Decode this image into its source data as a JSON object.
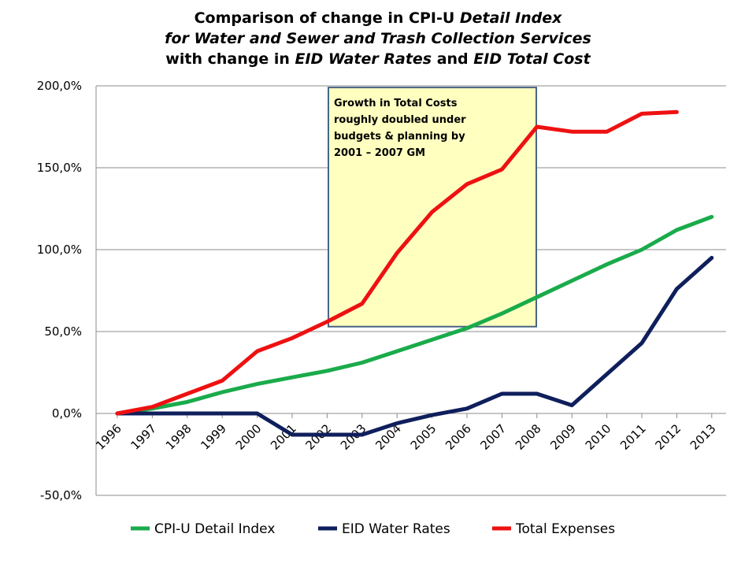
{
  "title": {
    "line1": {
      "plain": "Comparison of change in CPI-U ",
      "italic": "Detail Index"
    },
    "line2": {
      "italic": "for Water and Sewer and Trash Collection Services"
    },
    "line3": {
      "plain1": "with change in ",
      "italic1": "EID Water Rates",
      "plain2": " and ",
      "italic2": "EID Total Cost"
    }
  },
  "chart_data": {
    "type": "line",
    "x": [
      "1996",
      "1997",
      "1998",
      "1999",
      "2000",
      "2001",
      "2002",
      "2003",
      "2004",
      "2005",
      "2006",
      "2007",
      "2008",
      "2009",
      "2010",
      "2011",
      "2012",
      "2013"
    ],
    "y_ticks": [
      "200,0%",
      "150,0%",
      "100,0%",
      "50,0%",
      "0,0%",
      "-50,0%"
    ],
    "y_tick_values": [
      200,
      150,
      100,
      50,
      0,
      -50
    ],
    "ylim": [
      -50,
      200
    ],
    "grid": true,
    "legend_position": "bottom",
    "series": [
      {
        "name": "CPI-U Detail Index",
        "color": "#1aab4b",
        "values": [
          0,
          3,
          7,
          13,
          18,
          22,
          26,
          31,
          38,
          45,
          52,
          61,
          71,
          81,
          91,
          100,
          112,
          120
        ]
      },
      {
        "name": "EID Water Rates",
        "color": "#0f1f5c",
        "values": [
          0,
          0,
          0,
          0,
          0,
          -13,
          -13,
          -13,
          -6,
          -1,
          3,
          12,
          12,
          5,
          24,
          43,
          76,
          95
        ]
      },
      {
        "name": "Total Expenses",
        "color": "#ee1111",
        "values": [
          0,
          4,
          12,
          20,
          38,
          46,
          56,
          67,
          98,
          123,
          140,
          149,
          175,
          172,
          172,
          183,
          184,
          null
        ]
      }
    ],
    "annotation": {
      "lines": [
        "Growth in Total Costs",
        "roughly doubled under",
        "budgets & planning by",
        "2001 – 2007 GM"
      ],
      "fill": "#ffffc0",
      "border": "#4a6584"
    }
  }
}
